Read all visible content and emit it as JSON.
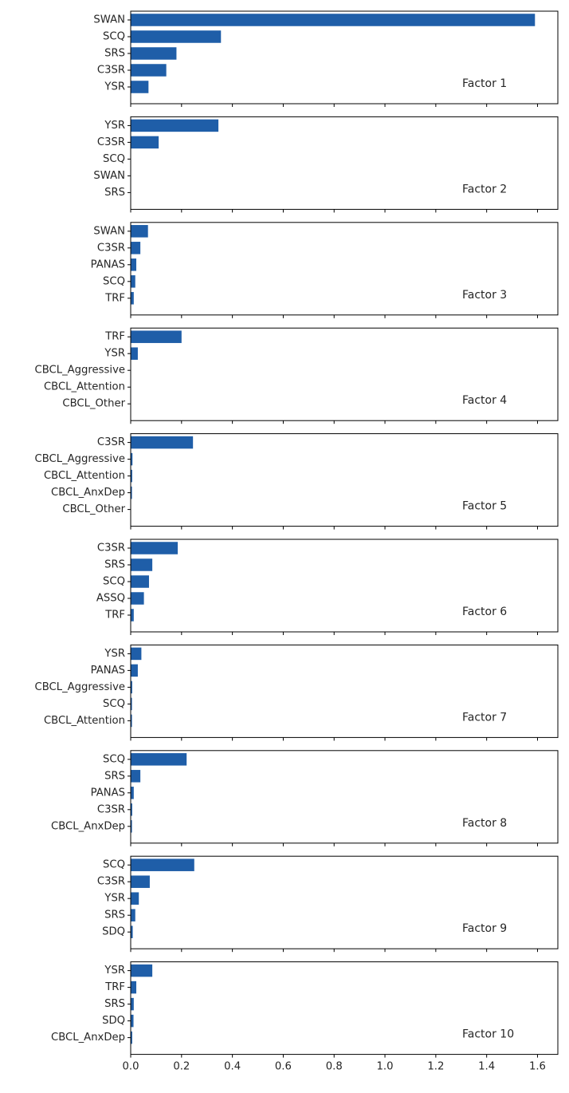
{
  "chart_data": {
    "type": "bar",
    "orientation": "horizontal",
    "shared_x": true,
    "xlim": [
      0,
      1.68
    ],
    "xticks": [
      "0.0",
      "0.2",
      "0.4",
      "0.6",
      "0.8",
      "1.0",
      "1.2",
      "1.4",
      "1.6"
    ],
    "bar_color": "#1f5ea8",
    "panels": [
      {
        "label": "Factor 1",
        "categories": [
          "SWAN",
          "SCQ",
          "SRS",
          "C3SR",
          "YSR"
        ],
        "values": [
          1.59,
          0.355,
          0.18,
          0.14,
          0.07
        ]
      },
      {
        "label": "Factor 2",
        "categories": [
          "YSR",
          "C3SR",
          "SCQ",
          "SWAN",
          "SRS"
        ],
        "values": [
          0.345,
          0.11,
          0.0,
          0.0,
          0.0
        ]
      },
      {
        "label": "Factor 3",
        "categories": [
          "SWAN",
          "C3SR",
          "PANAS",
          "SCQ",
          "TRF"
        ],
        "values": [
          0.068,
          0.038,
          0.022,
          0.018,
          0.012
        ]
      },
      {
        "label": "Factor 4",
        "categories": [
          "TRF",
          "YSR",
          "CBCL_Aggressive",
          "CBCL_Attention",
          "CBCL_Other"
        ],
        "values": [
          0.2,
          0.028,
          0.0,
          0.0,
          0.0
        ]
      },
      {
        "label": "Factor 5",
        "categories": [
          "C3SR",
          "CBCL_Aggressive",
          "CBCL_Attention",
          "CBCL_AnxDep",
          "CBCL_Other"
        ],
        "values": [
          0.245,
          0.007,
          0.006,
          0.005,
          0.0
        ]
      },
      {
        "label": "Factor 6",
        "categories": [
          "C3SR",
          "SRS",
          "SCQ",
          "ASSQ",
          "TRF"
        ],
        "values": [
          0.185,
          0.085,
          0.072,
          0.052,
          0.012
        ]
      },
      {
        "label": "Factor 7",
        "categories": [
          "YSR",
          "PANAS",
          "CBCL_Aggressive",
          "SCQ",
          "CBCL_Attention"
        ],
        "values": [
          0.042,
          0.028,
          0.006,
          0.005,
          0.005
        ]
      },
      {
        "label": "Factor 8",
        "categories": [
          "SCQ",
          "SRS",
          "PANAS",
          "C3SR",
          "CBCL_AnxDep"
        ],
        "values": [
          0.22,
          0.038,
          0.012,
          0.006,
          0.005
        ]
      },
      {
        "label": "Factor 9",
        "categories": [
          "SCQ",
          "C3SR",
          "YSR",
          "SRS",
          "SDQ"
        ],
        "values": [
          0.25,
          0.075,
          0.032,
          0.018,
          0.008
        ]
      },
      {
        "label": "Factor 10",
        "categories": [
          "YSR",
          "TRF",
          "SRS",
          "SDQ",
          "CBCL_AnxDep"
        ],
        "values": [
          0.085,
          0.022,
          0.012,
          0.011,
          0.006
        ]
      }
    ]
  }
}
